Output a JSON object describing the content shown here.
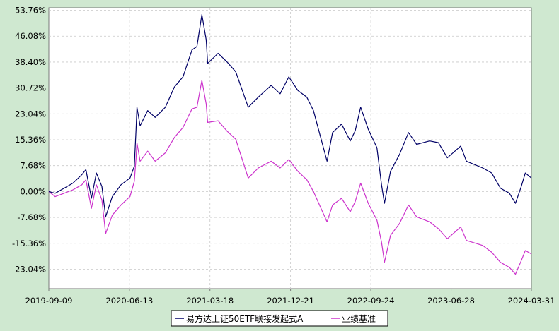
{
  "chart_data": {
    "type": "line",
    "title": "",
    "xlabel": "",
    "ylabel": "",
    "ylim": [
      -28.8,
      54.5
    ],
    "grid": true,
    "legend_placement": "bottom-center",
    "y_ticks": [
      53.76,
      46.08,
      38.4,
      30.72,
      23.04,
      15.36,
      7.68,
      0.0,
      -7.68,
      -15.36,
      -23.04
    ],
    "y_tick_labels": [
      "53.76%",
      "46.08%",
      "38.40%",
      "30.72%",
      "23.04%",
      "15.36%",
      "7.68%",
      "0.00%",
      "-7.68%",
      "-15.36%",
      "-23.04%"
    ],
    "x_ticks": [
      "2019-09-09",
      "2020-06-13",
      "2021-03-18",
      "2021-12-21",
      "2022-09-24",
      "2023-06-28",
      "2024-03-31"
    ],
    "series": [
      {
        "name": "易方达上证50ETF联接发起式A",
        "color": "#000066",
        "points": [
          [
            "2019-09-09",
            0.0
          ],
          [
            "2019-10-01",
            -0.5
          ],
          [
            "2019-11-01",
            1.0
          ],
          [
            "2019-12-01",
            2.5
          ],
          [
            "2020-01-01",
            5.0
          ],
          [
            "2020-01-15",
            6.5
          ],
          [
            "2020-02-03",
            -2.0
          ],
          [
            "2020-02-20",
            5.5
          ],
          [
            "2020-03-10",
            1.5
          ],
          [
            "2020-03-23",
            -7.5
          ],
          [
            "2020-04-15",
            -1.5
          ],
          [
            "2020-05-15",
            2.0
          ],
          [
            "2020-06-15",
            4.0
          ],
          [
            "2020-06-30",
            7.5
          ],
          [
            "2020-07-06",
            18.5
          ],
          [
            "2020-07-09",
            25.0
          ],
          [
            "2020-07-20",
            19.5
          ],
          [
            "2020-08-15",
            24.0
          ],
          [
            "2020-09-10",
            22.0
          ],
          [
            "2020-10-15",
            25.0
          ],
          [
            "2020-11-15",
            31.0
          ],
          [
            "2020-12-15",
            34.0
          ],
          [
            "2021-01-15",
            42.0
          ],
          [
            "2021-02-01",
            43.0
          ],
          [
            "2021-02-18",
            52.5
          ],
          [
            "2021-03-05",
            45.0
          ],
          [
            "2021-03-10",
            38.0
          ],
          [
            "2021-04-15",
            41.0
          ],
          [
            "2021-05-15",
            38.5
          ],
          [
            "2021-06-15",
            35.5
          ],
          [
            "2021-07-28",
            25.0
          ],
          [
            "2021-09-01",
            28.0
          ],
          [
            "2021-10-15",
            31.5
          ],
          [
            "2021-11-15",
            29.0
          ],
          [
            "2021-12-15",
            34.0
          ],
          [
            "2022-01-15",
            30.0
          ],
          [
            "2022-02-15",
            28.0
          ],
          [
            "2022-03-10",
            24.0
          ],
          [
            "2022-04-26",
            9.0
          ],
          [
            "2022-05-15",
            17.5
          ],
          [
            "2022-06-15",
            20.0
          ],
          [
            "2022-07-15",
            15.0
          ],
          [
            "2022-08-01",
            18.0
          ],
          [
            "2022-08-20",
            25.0
          ],
          [
            "2022-09-15",
            18.5
          ],
          [
            "2022-10-15",
            13.0
          ],
          [
            "2022-10-31",
            2.0
          ],
          [
            "2022-11-10",
            -3.5
          ],
          [
            "2022-12-01",
            6.0
          ],
          [
            "2023-01-01",
            11.0
          ],
          [
            "2023-02-01",
            17.5
          ],
          [
            "2023-03-01",
            14.0
          ],
          [
            "2023-04-15",
            15.0
          ],
          [
            "2023-05-15",
            14.5
          ],
          [
            "2023-06-15",
            10.0
          ],
          [
            "2023-07-31",
            13.5
          ],
          [
            "2023-08-20",
            9.0
          ],
          [
            "2023-10-15",
            7.0
          ],
          [
            "2023-11-15",
            5.5
          ],
          [
            "2023-12-15",
            1.0
          ],
          [
            "2024-01-15",
            -0.5
          ],
          [
            "2024-02-05",
            -3.5
          ],
          [
            "2024-02-25",
            1.5
          ],
          [
            "2024-03-10",
            5.5
          ],
          [
            "2024-03-31",
            4.0
          ]
        ]
      },
      {
        "name": "业绩基准",
        "color": "#cc33cc",
        "points": [
          [
            "2019-09-09",
            0.0
          ],
          [
            "2019-10-01",
            -1.5
          ],
          [
            "2019-11-01",
            -0.5
          ],
          [
            "2019-12-01",
            0.5
          ],
          [
            "2020-01-01",
            2.0
          ],
          [
            "2020-01-15",
            3.5
          ],
          [
            "2020-02-03",
            -5.0
          ],
          [
            "2020-02-20",
            2.0
          ],
          [
            "2020-03-10",
            -2.5
          ],
          [
            "2020-03-23",
            -12.5
          ],
          [
            "2020-04-15",
            -7.0
          ],
          [
            "2020-05-15",
            -4.0
          ],
          [
            "2020-06-15",
            -1.5
          ],
          [
            "2020-06-30",
            3.0
          ],
          [
            "2020-07-06",
            10.0
          ],
          [
            "2020-07-09",
            14.5
          ],
          [
            "2020-07-20",
            9.0
          ],
          [
            "2020-08-15",
            12.0
          ],
          [
            "2020-09-10",
            9.0
          ],
          [
            "2020-10-15",
            11.5
          ],
          [
            "2020-11-15",
            16.0
          ],
          [
            "2020-12-15",
            19.0
          ],
          [
            "2021-01-15",
            24.5
          ],
          [
            "2021-02-01",
            25.0
          ],
          [
            "2021-02-18",
            33.0
          ],
          [
            "2021-03-05",
            26.0
          ],
          [
            "2021-03-10",
            20.5
          ],
          [
            "2021-04-15",
            21.0
          ],
          [
            "2021-05-15",
            18.0
          ],
          [
            "2021-06-15",
            15.5
          ],
          [
            "2021-07-28",
            4.0
          ],
          [
            "2021-09-01",
            7.0
          ],
          [
            "2021-10-15",
            9.0
          ],
          [
            "2021-11-15",
            7.0
          ],
          [
            "2021-12-15",
            9.5
          ],
          [
            "2022-01-15",
            6.0
          ],
          [
            "2022-02-15",
            3.5
          ],
          [
            "2022-03-10",
            0.0
          ],
          [
            "2022-04-26",
            -9.0
          ],
          [
            "2022-05-15",
            -4.0
          ],
          [
            "2022-06-15",
            -2.0
          ],
          [
            "2022-07-15",
            -6.0
          ],
          [
            "2022-08-01",
            -3.0
          ],
          [
            "2022-08-20",
            2.5
          ],
          [
            "2022-09-15",
            -3.5
          ],
          [
            "2022-10-15",
            -8.5
          ],
          [
            "2022-10-31",
            -15.0
          ],
          [
            "2022-11-10",
            -21.0
          ],
          [
            "2022-12-01",
            -13.0
          ],
          [
            "2023-01-01",
            -9.5
          ],
          [
            "2023-02-01",
            -4.0
          ],
          [
            "2023-03-01",
            -7.5
          ],
          [
            "2023-04-15",
            -9.0
          ],
          [
            "2023-05-15",
            -11.0
          ],
          [
            "2023-06-15",
            -14.0
          ],
          [
            "2023-07-31",
            -10.5
          ],
          [
            "2023-08-20",
            -14.5
          ],
          [
            "2023-10-15",
            -16.0
          ],
          [
            "2023-11-15",
            -18.0
          ],
          [
            "2023-12-15",
            -21.0
          ],
          [
            "2024-01-15",
            -22.5
          ],
          [
            "2024-02-05",
            -24.5
          ],
          [
            "2024-02-25",
            -20.5
          ],
          [
            "2024-03-10",
            -17.5
          ],
          [
            "2024-03-31",
            -18.5
          ]
        ]
      }
    ]
  }
}
